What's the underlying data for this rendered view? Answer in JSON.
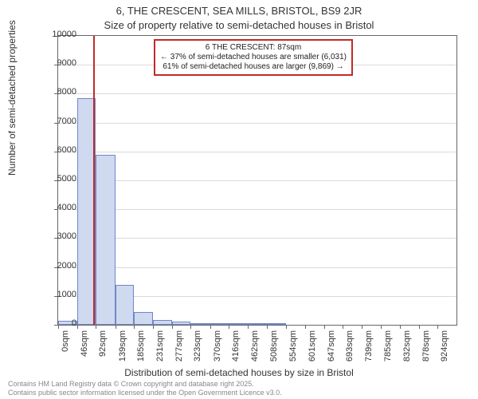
{
  "title_line1": "6, THE CRESCENT, SEA MILLS, BRISTOL, BS9 2JR",
  "title_line2": "Size of property relative to semi-detached houses in Bristol",
  "ylabel": "Number of semi-detached properties",
  "xlabel": "Distribution of semi-detached houses by size in Bristol",
  "chart": {
    "type": "histogram",
    "background_color": "#ffffff",
    "grid_color": "#d9d9d9",
    "axis_color": "#666666",
    "bar_fill": "#cfd9ef",
    "bar_border": "#6e88c7",
    "marker_color": "#c22a2a",
    "ylim": [
      0,
      10000
    ],
    "ytick_step": 1000,
    "yticks": [
      0,
      1000,
      2000,
      3000,
      4000,
      5000,
      6000,
      7000,
      8000,
      9000,
      10000
    ],
    "xlim": [
      0,
      970
    ],
    "xticks": [
      "0sqm",
      "46sqm",
      "92sqm",
      "139sqm",
      "185sqm",
      "231sqm",
      "277sqm",
      "323sqm",
      "370sqm",
      "416sqm",
      "462sqm",
      "508sqm",
      "554sqm",
      "601sqm",
      "647sqm",
      "693sqm",
      "739sqm",
      "785sqm",
      "832sqm",
      "878sqm",
      "924sqm"
    ],
    "xtick_positions": [
      0,
      46,
      92,
      139,
      185,
      231,
      277,
      323,
      370,
      416,
      462,
      508,
      554,
      601,
      647,
      693,
      739,
      785,
      832,
      878,
      924
    ],
    "bars": [
      {
        "x0": 0,
        "x1": 46,
        "value": 150
      },
      {
        "x0": 46,
        "x1": 92,
        "value": 7850
      },
      {
        "x0": 92,
        "x1": 139,
        "value": 5880
      },
      {
        "x0": 139,
        "x1": 185,
        "value": 1380
      },
      {
        "x0": 185,
        "x1": 231,
        "value": 450
      },
      {
        "x0": 231,
        "x1": 277,
        "value": 170
      },
      {
        "x0": 277,
        "x1": 323,
        "value": 100
      },
      {
        "x0": 323,
        "x1": 370,
        "value": 60
      },
      {
        "x0": 370,
        "x1": 416,
        "value": 20
      },
      {
        "x0": 416,
        "x1": 462,
        "value": 15
      },
      {
        "x0": 462,
        "x1": 508,
        "value": 10
      },
      {
        "x0": 508,
        "x1": 554,
        "value": 8
      }
    ],
    "marker_value": 87,
    "annotation": {
      "line1": "6 THE CRESCENT: 87sqm",
      "line2": "← 37% of semi-detached houses are smaller (6,031)",
      "line3": "61% of semi-detached houses are larger (9,869) →"
    }
  },
  "footer_line1": "Contains HM Land Registry data © Crown copyright and database right 2025.",
  "footer_line2": "Contains public sector information licensed under the Open Government Licence v3.0."
}
